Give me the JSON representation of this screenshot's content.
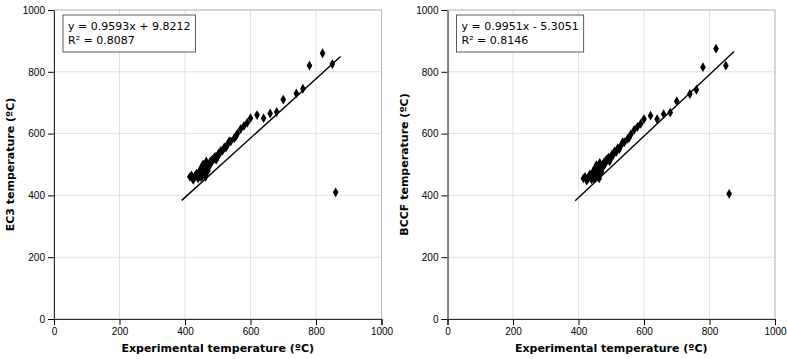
{
  "chart_data": [
    {
      "type": "scatter",
      "xlabel": "Experimental temperature (ºC)",
      "ylabel": "EC3 temperature (ºC)",
      "annotations": [
        "y = 0.9593x + 9.8212",
        "R² = 0.8087"
      ],
      "series": [
        {
          "type": "scatter",
          "marker": "diamond",
          "color": "black",
          "x": [
            415,
            420,
            425,
            430,
            432,
            435,
            438,
            440,
            442,
            445,
            445,
            447,
            450,
            450,
            452,
            455,
            455,
            458,
            460,
            460,
            462,
            463,
            465,
            465,
            467,
            468,
            470,
            472,
            475,
            476,
            478,
            480,
            483,
            485,
            488,
            490,
            492,
            495,
            498,
            500,
            502,
            505,
            508,
            510,
            515,
            520,
            525,
            530,
            535,
            540,
            550,
            555,
            560,
            570,
            580,
            590,
            600,
            620,
            640,
            660,
            680,
            700,
            740,
            760,
            780,
            820,
            850,
            860
          ],
          "values": [
            460,
            465,
            450,
            460,
            465,
            470,
            465,
            455,
            470,
            465,
            480,
            460,
            475,
            490,
            460,
            480,
            500,
            475,
            480,
            495,
            470,
            460,
            510,
            475,
            490,
            500,
            480,
            490,
            505,
            500,
            510,
            505,
            515,
            515,
            520,
            520,
            525,
            515,
            525,
            525,
            535,
            535,
            540,
            545,
            545,
            555,
            555,
            565,
            575,
            575,
            585,
            590,
            600,
            615,
            625,
            635,
            650,
            660,
            650,
            665,
            670,
            710,
            730,
            745,
            820,
            860,
            825,
            410
          ]
        },
        {
          "type": "line",
          "line_style": "solid",
          "color": "black",
          "x": [
            390,
            875
          ],
          "values": [
            383.9482,
            849.2087
          ]
        }
      ],
      "xlim": [
        0,
        1000
      ],
      "ylim": [
        0,
        1000
      ],
      "xticks": [
        0,
        200,
        400,
        600,
        800,
        1000
      ],
      "yticks": [
        0,
        200,
        400,
        600,
        800,
        1000
      ],
      "grid": true
    },
    {
      "type": "scatter",
      "xlabel": "Experimental temperature (ºC)",
      "ylabel": "BCCF temperature (ºC)",
      "annotations": [
        "y = 0.9951x - 5.3051",
        "R² = 0.8146"
      ],
      "series": [
        {
          "type": "scatter",
          "marker": "diamond",
          "color": "black",
          "x": [
            415,
            420,
            425,
            430,
            432,
            435,
            438,
            440,
            442,
            445,
            445,
            447,
            450,
            450,
            452,
            455,
            455,
            458,
            460,
            460,
            462,
            463,
            465,
            465,
            467,
            468,
            470,
            472,
            475,
            476,
            478,
            480,
            483,
            485,
            488,
            490,
            492,
            495,
            498,
            500,
            502,
            505,
            508,
            510,
            515,
            520,
            525,
            530,
            535,
            540,
            550,
            555,
            560,
            570,
            580,
            590,
            600,
            620,
            640,
            660,
            680,
            700,
            740,
            760,
            780,
            820,
            850,
            860
          ],
          "values": [
            455,
            460,
            448,
            455,
            462,
            468,
            460,
            452,
            468,
            462,
            478,
            455,
            472,
            488,
            458,
            478,
            498,
            472,
            478,
            492,
            467,
            455,
            505,
            472,
            488,
            495,
            476,
            488,
            500,
            496,
            507,
            500,
            512,
            510,
            518,
            516,
            522,
            510,
            521,
            522,
            532,
            530,
            537,
            542,
            540,
            553,
            550,
            562,
            572,
            572,
            583,
            587,
            598,
            612,
            622,
            632,
            647,
            658,
            647,
            663,
            668,
            705,
            728,
            742,
            815,
            875,
            820,
            405
          ]
        },
        {
          "type": "line",
          "line_style": "solid",
          "color": "black",
          "x": [
            390,
            875
          ],
          "values": [
            382.7839,
            865.4074
          ]
        }
      ],
      "xlim": [
        0,
        1000
      ],
      "ylim": [
        0,
        1000
      ],
      "xticks": [
        0,
        200,
        400,
        600,
        800,
        1000
      ],
      "yticks": [
        0,
        200,
        400,
        600,
        800,
        1000
      ],
      "grid": true
    }
  ]
}
